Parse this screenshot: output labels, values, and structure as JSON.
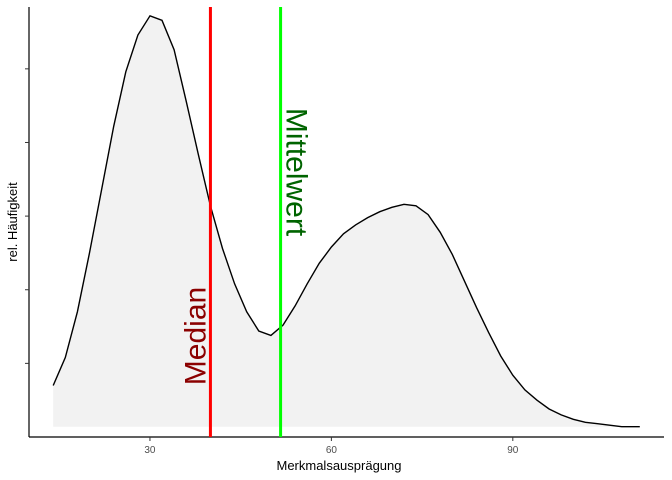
{
  "chart_data": {
    "type": "area",
    "title": "",
    "xlabel": "Merkmalsausprägung",
    "ylabel": "rel. Häufigkeit",
    "xlim": [
      10,
      115
    ],
    "ylim": [
      0,
      0.0292
    ],
    "x_ticks": [
      30,
      60,
      90
    ],
    "y_ticks": [
      0.005,
      0.01,
      0.015,
      0.02,
      0.025
    ],
    "y_tick_labels_shown": false,
    "grid": false,
    "legend": "none",
    "colors": {
      "fill": "#f2f2f2",
      "curve": "#000000",
      "median_line": "#ff0000",
      "median_label": "#8b0000",
      "mean_line": "#00ff00",
      "mean_label": "#006400"
    },
    "series": [
      {
        "x": [
          14,
          16,
          18,
          20,
          22,
          24,
          26,
          28,
          30,
          32,
          34,
          36,
          38,
          40,
          42,
          44,
          46,
          48,
          50,
          52,
          54,
          56,
          58,
          60,
          62,
          64,
          66,
          68,
          70,
          72,
          74,
          76,
          78,
          80,
          82,
          84,
          86,
          88,
          90,
          92,
          94,
          96,
          98,
          100,
          102,
          104,
          106,
          108,
          110,
          111
        ],
        "y": [
          0.0035,
          0.0054,
          0.0085,
          0.0125,
          0.0168,
          0.0211,
          0.0248,
          0.0273,
          0.0286,
          0.0283,
          0.0263,
          0.0228,
          0.0192,
          0.0157,
          0.0128,
          0.0104,
          0.0085,
          0.0072,
          0.0069,
          0.0076,
          0.0089,
          0.0104,
          0.0118,
          0.0129,
          0.0138,
          0.0144,
          0.0149,
          0.0153,
          0.0156,
          0.0158,
          0.0157,
          0.0151,
          0.0139,
          0.0124,
          0.0106,
          0.0088,
          0.0071,
          0.0055,
          0.0042,
          0.0032,
          0.0025,
          0.0019,
          0.0015,
          0.0012,
          0.001,
          0.0009,
          0.0008,
          0.0007,
          0.0007,
          0.0007
        ]
      }
    ],
    "median": 40,
    "mean": 51.6,
    "annotations": {
      "median_label": "Median",
      "mean_label": "Mittelwert"
    }
  }
}
